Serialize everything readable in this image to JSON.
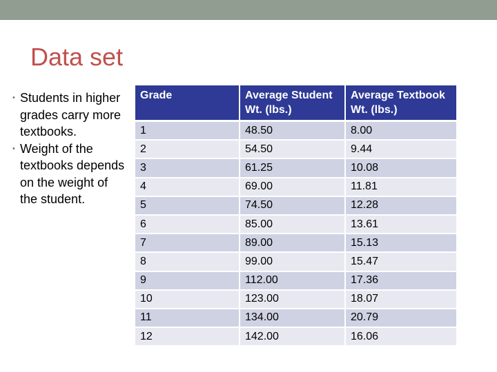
{
  "slide": {
    "title": "Data set",
    "bullets": [
      "Students in higher grades carry more textbooks.",
      "Weight of the textbooks depends on the weight of the student."
    ]
  },
  "table": {
    "headers": [
      "Grade",
      "Average Student Wt. (lbs.)",
      "Average Textbook Wt. (lbs.)"
    ],
    "rows": [
      [
        "1",
        "48.50",
        "8.00"
      ],
      [
        "2",
        "54.50",
        "9.44"
      ],
      [
        "3",
        "61.25",
        "10.08"
      ],
      [
        "4",
        "69.00",
        "11.81"
      ],
      [
        "5",
        "74.50",
        "12.28"
      ],
      [
        "6",
        "85.00",
        "13.61"
      ],
      [
        "7",
        "89.00",
        "15.13"
      ],
      [
        "8",
        "99.00",
        "15.47"
      ],
      [
        "9",
        "112.00",
        "17.36"
      ],
      [
        "10",
        "123.00",
        "18.07"
      ],
      [
        "11",
        "134.00",
        "20.79"
      ],
      [
        "12",
        "142.00",
        "16.06"
      ]
    ]
  },
  "colors": {
    "top_bar": "#909d90",
    "title": "#c0504d",
    "header_bg": "#2e3a96",
    "row_dark": "#cfd2e3",
    "row_light": "#e8e9f0"
  },
  "icons": {
    "bullet": "bullet-dot-icon"
  }
}
